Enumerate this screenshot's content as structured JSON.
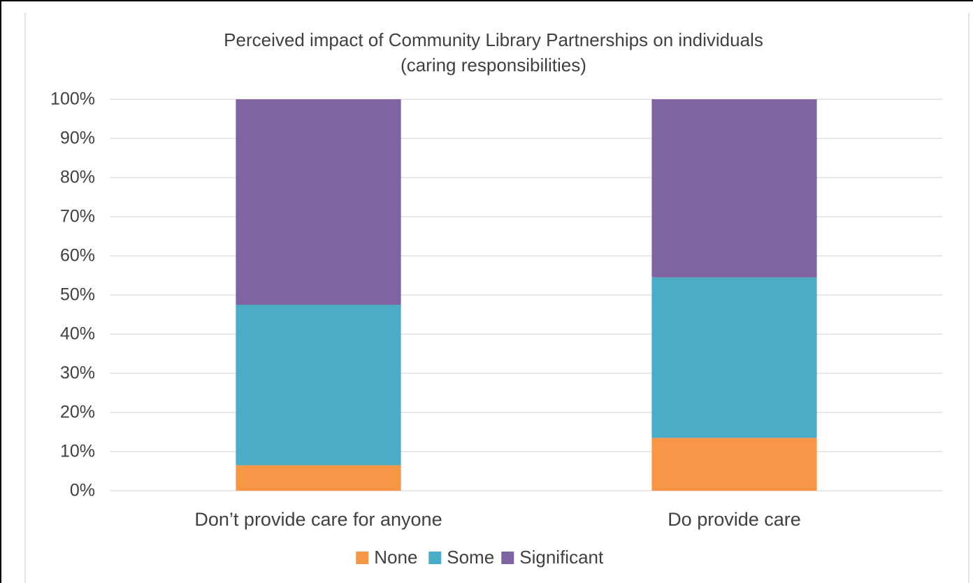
{
  "chart_data": {
    "type": "bar",
    "stacked": true,
    "title": [
      "Perceived impact of Community Library Partnerships on individuals",
      "(caring responsibilities)"
    ],
    "categories": [
      "Don’t provide care for anyone",
      "Do provide care"
    ],
    "series": [
      {
        "name": "None",
        "color": "#f79646",
        "values": [
          6.5,
          13.5
        ]
      },
      {
        "name": "Some",
        "color": "#4bacc6",
        "values": [
          41.0,
          41.0
        ]
      },
      {
        "name": "Significant",
        "color": "#8064a2",
        "values": [
          52.5,
          45.5
        ]
      }
    ],
    "ylim": [
      0,
      100
    ],
    "yticks": [
      "0%",
      "10%",
      "20%",
      "30%",
      "40%",
      "50%",
      "60%",
      "70%",
      "80%",
      "90%",
      "100%"
    ],
    "grid": true,
    "legend_position": "bottom"
  }
}
